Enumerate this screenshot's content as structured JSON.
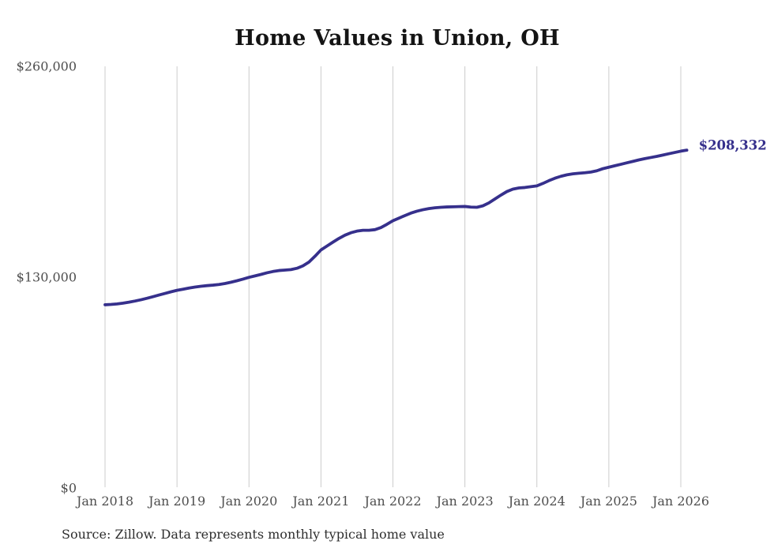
{
  "chart_data": {
    "type": "line",
    "title": "Home Values in Union, OH",
    "source_note": "Source: Zillow. Data represents monthly typical home value",
    "end_label": "$208,332",
    "latest_value": 208332,
    "line_color": "#36308c",
    "grid_color": "#cccccc",
    "label_color": "#4e4e4e",
    "grid": "vertical-yearly",
    "ylim": [
      0,
      260000
    ],
    "y_tick_values": [
      0,
      130000,
      260000
    ],
    "y_tick_labels": [
      "$0",
      "$130,000",
      "$260,000"
    ],
    "x_tick_labels": [
      "Jan 2018",
      "Jan 2019",
      "Jan 2020",
      "Jan 2021",
      "Jan 2022",
      "Jan 2023",
      "Jan 2024",
      "Jan 2025",
      "Jan 2026"
    ],
    "x_start": "Jan 2018",
    "x_end": "Feb 2026",
    "interval": "monthly",
    "series": [
      {
        "name": "Typical home value",
        "values": [
          113000,
          113200,
          113500,
          114000,
          114600,
          115300,
          116100,
          117000,
          118000,
          119000,
          120000,
          121000,
          121900,
          122600,
          123300,
          123900,
          124400,
          124800,
          125100,
          125500,
          126100,
          126900,
          127800,
          128800,
          129900,
          130800,
          131700,
          132700,
          133500,
          134100,
          134400,
          134700,
          135500,
          137000,
          139300,
          142900,
          146800,
          149200,
          151600,
          153900,
          155900,
          157400,
          158400,
          158900,
          158900,
          159300,
          160600,
          162600,
          164800,
          166400,
          168000,
          169500,
          170700,
          171600,
          172300,
          172800,
          173100,
          173300,
          173400,
          173500,
          173600,
          173200,
          173100,
          174000,
          175800,
          178200,
          180600,
          182800,
          184300,
          185000,
          185300,
          185800,
          186300,
          187800,
          189500,
          191000,
          192200,
          193100,
          193700,
          194100,
          194400,
          194800,
          195600,
          196900,
          197800,
          198700,
          199600,
          200500,
          201400,
          202300,
          203100,
          203800,
          204500,
          205300,
          206100,
          206900,
          207700,
          208332
        ]
      }
    ]
  }
}
